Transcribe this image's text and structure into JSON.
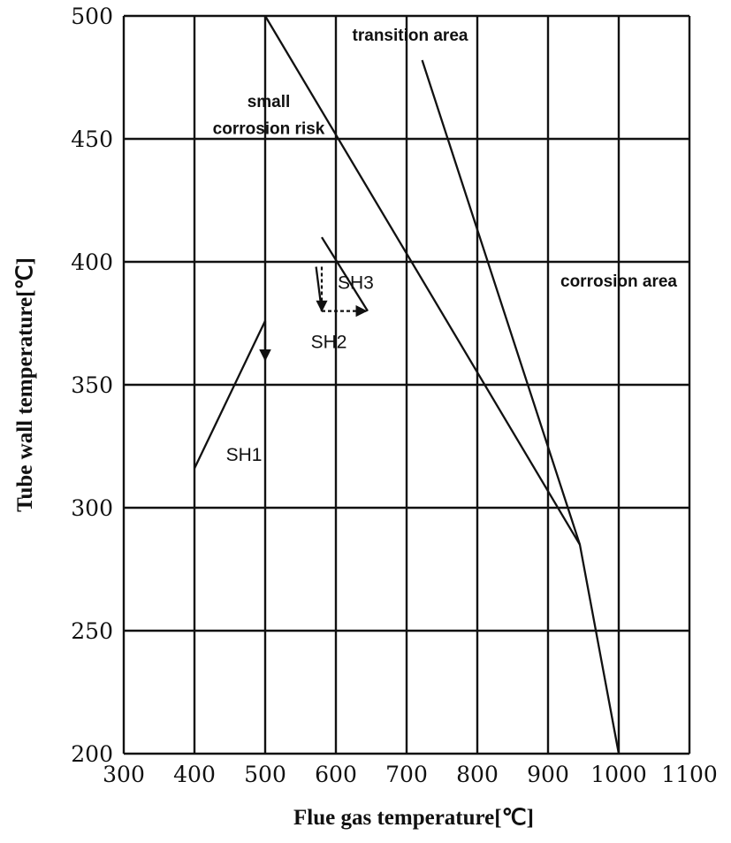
{
  "chart_data": {
    "type": "line",
    "title": "",
    "xlabel": "Flue gas temperature[℃]",
    "ylabel": "Tube wall temperature[℃]",
    "xlim": [
      300,
      1100
    ],
    "ylim": [
      200,
      500
    ],
    "xticks": [
      300,
      400,
      500,
      600,
      700,
      800,
      900,
      1000,
      1100
    ],
    "yticks": [
      200,
      250,
      300,
      350,
      400,
      450,
      500
    ],
    "grid": true,
    "boundaries": [
      {
        "x": [
          500,
          945
        ],
        "y": [
          500,
          285
        ]
      },
      {
        "x": [
          722,
          945,
          1000
        ],
        "y": [
          482,
          285,
          200
        ]
      }
    ],
    "series": [
      {
        "name": "SH1",
        "x": [
          400,
          500
        ],
        "y": [
          316,
          376
        ]
      },
      {
        "name": "SH2",
        "x": [
          572,
          580
        ],
        "y": [
          398,
          380
        ]
      },
      {
        "name": "SH3",
        "x": [
          580,
          645
        ],
        "y": [
          410,
          380
        ]
      }
    ],
    "arrows": [
      {
        "x": [
          500,
          500
        ],
        "y": [
          376,
          360
        ],
        "style": "solid"
      },
      {
        "x": [
          580,
          580
        ],
        "y": [
          398,
          380
        ],
        "style": "dashed"
      },
      {
        "x": [
          580,
          643
        ],
        "y": [
          380,
          380
        ],
        "style": "dashed"
      }
    ],
    "annotations": [
      {
        "text": "transition area",
        "x": 705,
        "y": 490,
        "anchor": "middle"
      },
      {
        "text": "small",
        "x": 505,
        "y": 463,
        "anchor": "middle"
      },
      {
        "text": "corrosion risk",
        "x": 505,
        "y": 452,
        "anchor": "middle"
      },
      {
        "text": "corrosion area",
        "x": 1000,
        "y": 390,
        "anchor": "middle"
      },
      {
        "text": "SH3",
        "x": 628,
        "y": 389,
        "anchor": "middle"
      },
      {
        "text": "SH2",
        "x": 590,
        "y": 365,
        "anchor": "middle"
      },
      {
        "text": "SH1",
        "x": 470,
        "y": 319,
        "anchor": "middle"
      }
    ]
  }
}
